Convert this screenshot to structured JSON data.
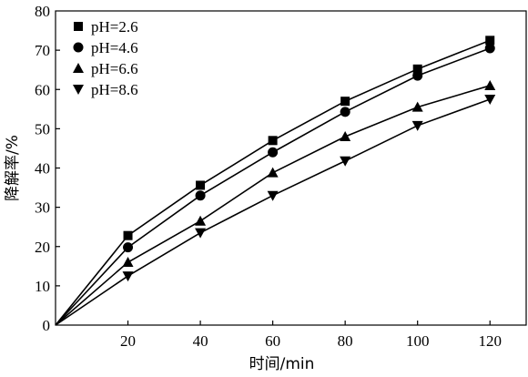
{
  "chart_data": {
    "type": "line",
    "xlabel": "时间/min",
    "ylabel": "降解率/%",
    "xlim": [
      0,
      130
    ],
    "ylim": [
      0,
      80
    ],
    "xticks": [
      20,
      40,
      60,
      80,
      100,
      120
    ],
    "yticks": [
      0,
      10,
      20,
      30,
      40,
      50,
      60,
      70,
      80
    ],
    "grid": false,
    "legend_position": "top-left",
    "x": [
      0,
      20,
      40,
      60,
      80,
      100,
      120
    ],
    "series": [
      {
        "name": "pH=2.6",
        "marker": "square",
        "values": [
          0,
          22.8,
          35.6,
          47.0,
          57.0,
          65.2,
          72.5
        ]
      },
      {
        "name": "pH=4.6",
        "marker": "circle",
        "values": [
          0,
          19.8,
          33.0,
          44.0,
          54.3,
          63.5,
          70.5
        ]
      },
      {
        "name": "pH=6.6",
        "marker": "triangle-up",
        "values": [
          0,
          16.0,
          26.5,
          38.8,
          48.0,
          55.5,
          61.0
        ]
      },
      {
        "name": "pH=8.6",
        "marker": "triangle-down",
        "values": [
          0,
          12.5,
          23.5,
          33.0,
          41.8,
          50.8,
          57.5
        ]
      }
    ],
    "colors": {
      "line": "#000000",
      "marker": "#000000"
    }
  }
}
